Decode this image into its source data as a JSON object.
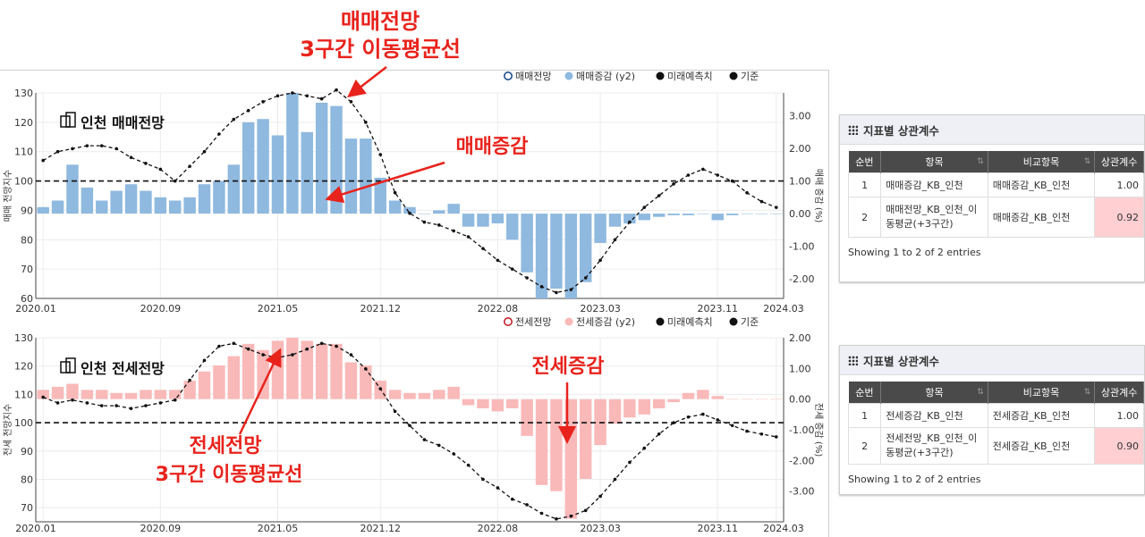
{
  "callouts": {
    "top_ma": [
      "매매전망",
      "3구간 이동평균선"
    ],
    "top_change": "매매증감",
    "bottom_ma": [
      "전세전망",
      "3구간 이동평균선"
    ],
    "bottom_change": "전세증감"
  },
  "colors": {
    "arrow": "#e8231c",
    "bar_sale": "#8fb9df",
    "bar_jeonse": "#f9b9b9",
    "dash": "#111111",
    "highlight": "#ffcfd2"
  },
  "chart_data": [
    {
      "type": "bar",
      "watermark": "인천 매매전망",
      "legend": [
        "매매전망",
        "매매증감 (y2)",
        "미래예측치",
        "기준"
      ],
      "ylabel": "매매 전망지수",
      "y2label": "매매 증감 (%)",
      "ylim": [
        60,
        130
      ],
      "y2lim": [
        -2.6,
        3.7
      ],
      "yticks": [
        60,
        70,
        80,
        90,
        100,
        110,
        120,
        130
      ],
      "y2ticks": [
        "3.00",
        "2.00",
        "1.00",
        "0.00",
        "-1.00",
        "-2.00"
      ],
      "y2tick_values": [
        3,
        2,
        1,
        0,
        -1,
        -2
      ],
      "xticks": [
        "2020.01",
        "2020.09",
        "2021.05",
        "2021.12",
        "2022.08",
        "2023.03",
        "2023.11",
        "2024.03"
      ],
      "xtick_index": [
        0,
        8,
        16,
        23,
        31,
        38,
        46,
        50
      ],
      "reference_line": 100,
      "bars_y2": [
        0.2,
        0.4,
        1.5,
        0.8,
        0.4,
        0.7,
        0.9,
        0.7,
        0.5,
        0.4,
        0.5,
        0.9,
        1.0,
        1.5,
        2.8,
        2.9,
        2.4,
        3.7,
        2.5,
        3.4,
        3.3,
        2.3,
        2.3,
        1.1,
        0.4,
        0.2,
        0.0,
        0.1,
        0.3,
        -0.4,
        -0.4,
        -0.3,
        -0.8,
        -1.8,
        -2.6,
        -2.3,
        -2.6,
        -2.1,
        -0.9,
        -0.4,
        -0.3,
        -0.2,
        -0.1,
        -0.05,
        -0.05,
        0.0,
        -0.2,
        -0.05,
        0.0,
        0.0,
        0.0
      ],
      "ma_line": [
        107,
        110,
        111,
        112,
        112,
        111,
        108,
        106,
        104,
        100,
        105,
        110,
        116,
        121,
        124,
        127,
        129,
        130,
        129,
        128,
        131,
        127,
        120,
        109,
        96,
        89,
        86,
        85,
        83,
        81,
        77,
        73,
        70,
        67,
        64,
        62,
        63,
        67,
        73,
        80,
        86,
        91,
        95,
        99,
        102,
        104,
        102,
        100,
        96,
        93,
        91
      ]
    },
    {
      "type": "bar",
      "watermark": "인천 전세전망",
      "legend": [
        "전세전망",
        "전세증감 (y2)",
        "미래예측치",
        "기준"
      ],
      "ylabel": "전세 전망지수",
      "y2label": "전세 증감 (%)",
      "ylim": [
        65,
        130
      ],
      "y2lim": [
        -4,
        2
      ],
      "yticks": [
        70,
        80,
        90,
        100,
        110,
        120,
        130
      ],
      "y2ticks": [
        "2.00",
        "1.00",
        "0.00",
        "-1.00",
        "-2.00",
        "-3.00"
      ],
      "y2tick_values": [
        2,
        1,
        0,
        -1,
        -2,
        -3
      ],
      "xticks": [
        "2020.01",
        "2020.09",
        "2021.05",
        "2021.12",
        "2022.08",
        "2023.03",
        "2023.11",
        "2024.03"
      ],
      "xtick_index": [
        0,
        8,
        16,
        23,
        31,
        38,
        46,
        50
      ],
      "reference_line": 100,
      "bars_y2": [
        0.3,
        0.4,
        0.5,
        0.3,
        0.3,
        0.2,
        0.2,
        0.3,
        0.3,
        0.3,
        0.6,
        0.9,
        1.1,
        1.4,
        1.8,
        1.6,
        1.9,
        2.0,
        1.9,
        1.8,
        1.8,
        1.2,
        1.1,
        0.6,
        0.3,
        0.2,
        0.2,
        0.3,
        0.4,
        -0.2,
        -0.3,
        -0.4,
        -0.3,
        -1.2,
        -2.8,
        -3.0,
        -3.9,
        -2.6,
        -1.5,
        -0.8,
        -0.6,
        -0.5,
        -0.3,
        -0.1,
        0.2,
        0.3,
        0.1,
        0.0,
        0.0,
        0.0,
        0.0
      ],
      "ma_line": [
        109,
        107,
        108,
        107,
        106,
        106,
        105,
        106,
        107,
        108,
        115,
        122,
        127,
        128,
        126,
        124,
        123,
        124,
        126,
        128,
        127,
        124,
        119,
        112,
        104,
        99,
        94,
        92,
        89,
        85,
        80,
        77,
        73,
        71,
        68,
        66,
        67,
        69,
        74,
        80,
        86,
        91,
        96,
        100,
        102,
        103,
        101,
        99,
        97,
        96,
        95
      ]
    }
  ],
  "tables": [
    {
      "title": "지표별 상관계수",
      "headers": [
        "순번",
        "항목",
        "비교항목",
        "상관계수"
      ],
      "rows": [
        [
          "1",
          "매매증감_KB_인천",
          "매매증감_KB_인천",
          "1.00"
        ],
        [
          "2",
          "매매전망_KB_인천_이동평균(+3구간)",
          "매매증감_KB_인천",
          "0.92"
        ]
      ],
      "footer": "Showing 1 to 2 of 2 entries"
    },
    {
      "title": "지표별 상관계수",
      "headers": [
        "순번",
        "항목",
        "비교항목",
        "상관계수"
      ],
      "rows": [
        [
          "1",
          "전세증감_KB_인천",
          "전세증감_KB_인천",
          "1.00"
        ],
        [
          "2",
          "전세전망_KB_인천_이동평균(+3구간)",
          "전세증감_KB_인천",
          "0.90"
        ]
      ],
      "footer": "Showing 1 to 2 of 2 entries"
    }
  ]
}
